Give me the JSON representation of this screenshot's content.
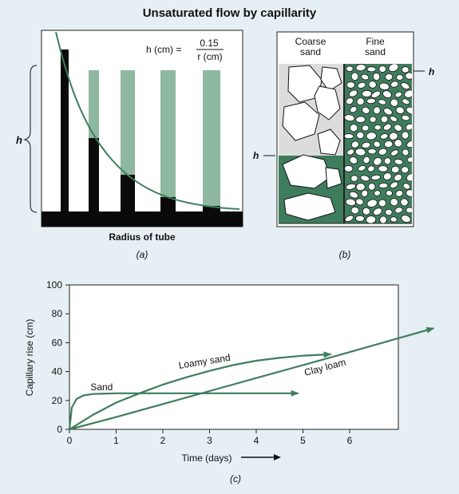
{
  "title": "Unsaturated flow by capillarity",
  "panel_a": {
    "formula_lhs": "h (cm) =",
    "formula_num": "0.15",
    "formula_den": "r (cm)",
    "h_label": "h",
    "x_label": "Radius of tube",
    "caption": "(a)"
  },
  "panel_b": {
    "col1_label_line1": "Coarse",
    "col1_label_line2": "sand",
    "col2_label_line1": "Fine",
    "col2_label_line2": "sand",
    "h_right": "h",
    "h_left": "h",
    "caption": "(b)"
  },
  "panel_c": {
    "caption": "(c)",
    "ylabel": "Capillary rise (cm)",
    "xlabel": "Time (days)",
    "y_ticks": [
      "0",
      "20",
      "40",
      "60",
      "80",
      "100"
    ],
    "x_ticks": [
      "0",
      "1",
      "2",
      "3",
      "4",
      "5",
      "6"
    ],
    "series_labels": {
      "sand": "Sand",
      "loamy_sand": "Loamy sand",
      "clay_loam": "Clay loam"
    }
  },
  "colors": {
    "green": "#3e7d5c",
    "pale_green": "#8fb8a0",
    "black": "#0a0a0a",
    "panel_bg": "#ffffff",
    "page_bg": "#e6eff4"
  },
  "chart_data": {
    "type": "line",
    "xlabel": "Time (days)",
    "ylabel": "Capillary rise (cm)",
    "xlim": [
      0,
      6.5
    ],
    "ylim": [
      0,
      100
    ],
    "series": [
      {
        "name": "Sand",
        "x": [
          0,
          0.05,
          0.15,
          0.3,
          0.5,
          1,
          2,
          3,
          4,
          4.9
        ],
        "y": [
          0,
          15,
          21,
          23.5,
          24.5,
          25,
          25,
          25,
          25,
          25
        ]
      },
      {
        "name": "Loamy sand",
        "x": [
          0,
          0.5,
          1,
          1.5,
          2,
          2.5,
          3,
          3.5,
          4,
          4.5,
          5,
          5.6
        ],
        "y": [
          0,
          10,
          18.5,
          25,
          31,
          36,
          40.5,
          44.5,
          47.5,
          49.5,
          51,
          52
        ]
      },
      {
        "name": "Clay loam",
        "x": [
          0,
          1,
          2,
          3,
          4,
          5,
          6,
          7.8
        ],
        "y": [
          0,
          8.5,
          17.5,
          26.5,
          35.5,
          44.5,
          53.5,
          70
        ]
      }
    ]
  }
}
